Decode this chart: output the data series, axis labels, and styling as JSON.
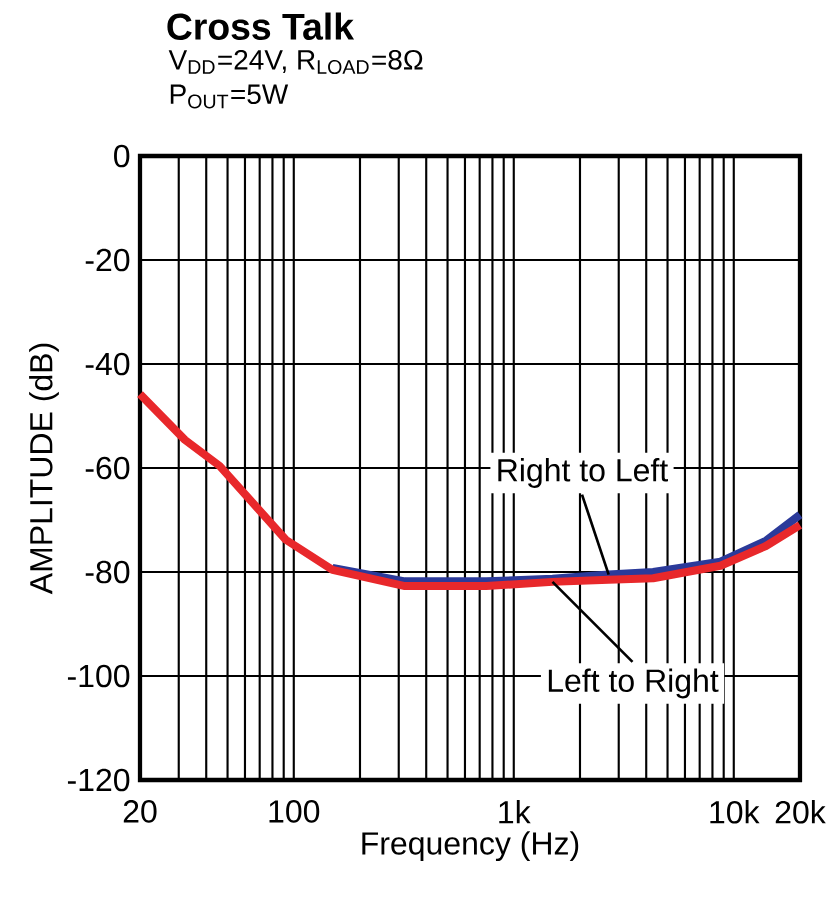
{
  "chart_data": {
    "type": "line",
    "title": "Cross Talk",
    "subtitle": "V$_{DD}$=24V, R$_{LOAD}$=8Ω",
    "xlabel": "Frequency (Hz)",
    "ylabel": "AMPLITUDE (dB)",
    "log": "x",
    "grid": true,
    "legend": false,
    "xlim": [
      20,
      20000
    ],
    "ylim": [
      -120,
      0
    ],
    "xticks": [
      20,
      {
        "value": 100,
        "label": "100"
      },
      {
        "value": 1000,
        "label": "1k"
      },
      {
        "value": 10000,
        "label": "10k"
      },
      {
        "value": 20000,
        "label": "20k"
      }
    ],
    "yticks": [
      0,
      -20,
      -40,
      -60,
      -80,
      -100,
      -120
    ],
    "series": [
      {
        "name": "Right to Left",
        "color": "#2b3a9a",
        "x": [
          150,
          320,
          750,
          1500,
          2700,
          4300,
          8700,
          14000,
          20000
        ],
        "values": [
          -79.2,
          -81.8,
          -81.8,
          -81.3,
          -80.5,
          -80,
          -78,
          -74,
          -69
        ]
      },
      {
        "name": "Left to Right",
        "color": "#e8282b",
        "x": [
          20,
          32,
          46,
          92,
          150,
          320,
          750,
          1500,
          2700,
          4300,
          8700,
          14000,
          20000
        ],
        "values": [
          -45.8,
          -54.6,
          -59.6,
          -73.8,
          -79.6,
          -82.7,
          -82.7,
          -81.9,
          -81.5,
          -81.2,
          -78.8,
          -75,
          -71
        ]
      }
    ],
    "annotations": [
      "P$_{OUT}$=5W"
    ]
  }
}
